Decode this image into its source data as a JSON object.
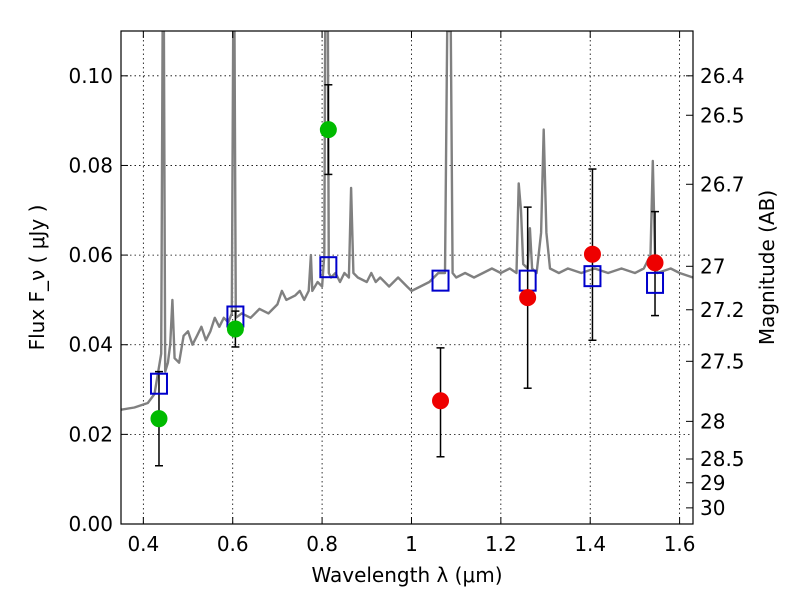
{
  "chart_data": {
    "type": "scatter",
    "title": "",
    "xlabel": "Wavelength  λ (μm)",
    "ylabel": "Flux  F_ν  ( μJy )",
    "ylabel_right": "Magnitude (AB)",
    "xlim": [
      0.35,
      1.63
    ],
    "ylim": [
      0.0,
      0.11
    ],
    "grid": true,
    "x_ticks": [
      0.4,
      0.6,
      0.8,
      1.0,
      1.2,
      1.4,
      1.6
    ],
    "x_tick_labels": [
      "0.4",
      "0.6",
      "0.8",
      "1",
      "1.2",
      "1.4",
      "1.6"
    ],
    "y_ticks": [
      0.0,
      0.02,
      0.04,
      0.06,
      0.08,
      0.1
    ],
    "y_tick_labels": [
      "0.00",
      "0.02",
      "0.04",
      "0.06",
      "0.08",
      "0.10"
    ],
    "right_ticks": [
      {
        "flux": 0.1,
        "label": "26.4"
      },
      {
        "flux": 0.0912,
        "label": "26.5"
      },
      {
        "flux": 0.0758,
        "label": "26.7"
      },
      {
        "flux": 0.0575,
        "label": "27"
      },
      {
        "flux": 0.0478,
        "label": "27.2"
      },
      {
        "flux": 0.0363,
        "label": "27.5"
      },
      {
        "flux": 0.0229,
        "label": "28"
      },
      {
        "flux": 0.0145,
        "label": "28.5"
      },
      {
        "flux": 0.0092,
        "label": "29"
      },
      {
        "flux": 0.0036,
        "label": "30"
      }
    ],
    "series": [
      {
        "marker": "circle",
        "color": "#00bb00",
        "points": [
          {
            "x": 0.435,
            "y": 0.0235,
            "err_low": 0.013,
            "err_high": 0.034
          },
          {
            "x": 0.606,
            "y": 0.0435,
            "err_low": 0.0395,
            "err_high": 0.0475
          },
          {
            "x": 0.814,
            "y": 0.088,
            "err_low": 0.078,
            "err_high": 0.098
          }
        ]
      },
      {
        "marker": "circle",
        "color": "#ee0000",
        "points": [
          {
            "x": 1.065,
            "y": 0.0275,
            "err_low": 0.015,
            "err_high": 0.0393
          },
          {
            "x": 1.26,
            "y": 0.0505,
            "err_low": 0.0303,
            "err_high": 0.0707
          },
          {
            "x": 1.405,
            "y": 0.0602,
            "err_low": 0.041,
            "err_high": 0.0792
          },
          {
            "x": 1.545,
            "y": 0.0583,
            "err_low": 0.0465,
            "err_high": 0.0697
          }
        ]
      },
      {
        "marker": "open-square",
        "color": "#0000cc",
        "points": [
          {
            "x": 0.435,
            "y": 0.0313
          },
          {
            "x": 0.606,
            "y": 0.0463
          },
          {
            "x": 0.814,
            "y": 0.0573
          },
          {
            "x": 1.065,
            "y": 0.0543
          },
          {
            "x": 1.26,
            "y": 0.0543
          },
          {
            "x": 1.405,
            "y": 0.0553
          },
          {
            "x": 1.545,
            "y": 0.0538
          }
        ]
      },
      {
        "marker": "line",
        "color": "#808080",
        "points": [
          [
            0.35,
            0.0255
          ],
          [
            0.38,
            0.026
          ],
          [
            0.41,
            0.027
          ],
          [
            0.425,
            0.029
          ],
          [
            0.44,
            0.038
          ],
          [
            0.443,
            0.11
          ],
          [
            0.446,
            0.11
          ],
          [
            0.449,
            0.034
          ],
          [
            0.455,
            0.036
          ],
          [
            0.46,
            0.04
          ],
          [
            0.465,
            0.05
          ],
          [
            0.47,
            0.037
          ],
          [
            0.48,
            0.036
          ],
          [
            0.49,
            0.042
          ],
          [
            0.5,
            0.043
          ],
          [
            0.51,
            0.04
          ],
          [
            0.52,
            0.042
          ],
          [
            0.53,
            0.044
          ],
          [
            0.54,
            0.041
          ],
          [
            0.55,
            0.043
          ],
          [
            0.56,
            0.046
          ],
          [
            0.57,
            0.044
          ],
          [
            0.58,
            0.046
          ],
          [
            0.59,
            0.045
          ],
          [
            0.598,
            0.047
          ],
          [
            0.601,
            0.11
          ],
          [
            0.604,
            0.11
          ],
          [
            0.607,
            0.046
          ],
          [
            0.62,
            0.047
          ],
          [
            0.64,
            0.046
          ],
          [
            0.66,
            0.048
          ],
          [
            0.68,
            0.047
          ],
          [
            0.7,
            0.049
          ],
          [
            0.71,
            0.052
          ],
          [
            0.72,
            0.05
          ],
          [
            0.74,
            0.051
          ],
          [
            0.75,
            0.052
          ],
          [
            0.76,
            0.05
          ],
          [
            0.77,
            0.052
          ],
          [
            0.775,
            0.06
          ],
          [
            0.778,
            0.052
          ],
          [
            0.79,
            0.054
          ],
          [
            0.8,
            0.053
          ],
          [
            0.805,
            0.06
          ],
          [
            0.807,
            0.11
          ],
          [
            0.811,
            0.11
          ],
          [
            0.813,
            0.11
          ],
          [
            0.815,
            0.056
          ],
          [
            0.82,
            0.055
          ],
          [
            0.83,
            0.056
          ],
          [
            0.84,
            0.054
          ],
          [
            0.85,
            0.056
          ],
          [
            0.86,
            0.055
          ],
          [
            0.865,
            0.075
          ],
          [
            0.87,
            0.056
          ],
          [
            0.88,
            0.055
          ],
          [
            0.9,
            0.054
          ],
          [
            0.91,
            0.056
          ],
          [
            0.92,
            0.054
          ],
          [
            0.93,
            0.055
          ],
          [
            0.95,
            0.053
          ],
          [
            0.97,
            0.055
          ],
          [
            0.99,
            0.053
          ],
          [
            1.0,
            0.052
          ],
          [
            1.02,
            0.053
          ],
          [
            1.04,
            0.054
          ],
          [
            1.06,
            0.056
          ],
          [
            1.075,
            0.056
          ],
          [
            1.08,
            0.11
          ],
          [
            1.088,
            0.11
          ],
          [
            1.092,
            0.056
          ],
          [
            1.1,
            0.055
          ],
          [
            1.12,
            0.056
          ],
          [
            1.14,
            0.055
          ],
          [
            1.16,
            0.056
          ],
          [
            1.18,
            0.057
          ],
          [
            1.2,
            0.056
          ],
          [
            1.22,
            0.057
          ],
          [
            1.235,
            0.056
          ],
          [
            1.24,
            0.076
          ],
          [
            1.245,
            0.07
          ],
          [
            1.25,
            0.058
          ],
          [
            1.26,
            0.057
          ],
          [
            1.265,
            0.066
          ],
          [
            1.27,
            0.057
          ],
          [
            1.28,
            0.056
          ],
          [
            1.29,
            0.065
          ],
          [
            1.296,
            0.088
          ],
          [
            1.302,
            0.065
          ],
          [
            1.31,
            0.057
          ],
          [
            1.33,
            0.056
          ],
          [
            1.35,
            0.057
          ],
          [
            1.38,
            0.056
          ],
          [
            1.41,
            0.057
          ],
          [
            1.44,
            0.056
          ],
          [
            1.47,
            0.057
          ],
          [
            1.5,
            0.056
          ],
          [
            1.52,
            0.057
          ],
          [
            1.535,
            0.06
          ],
          [
            1.54,
            0.081
          ],
          [
            1.545,
            0.06
          ],
          [
            1.55,
            0.056
          ],
          [
            1.58,
            0.057
          ],
          [
            1.6,
            0.056
          ],
          [
            1.63,
            0.055
          ]
        ]
      }
    ]
  }
}
